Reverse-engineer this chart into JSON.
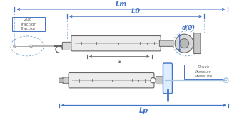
{
  "bg_color": "#ffffff",
  "blue": "#4472c4",
  "light_blue": "#a8c4e0",
  "gray": "#999999",
  "dark_gray": "#666666",
  "mid_gray": "#aaaaaa",
  "light_gray": "#cccccc",
  "dashed_blue": "#7aaad0",
  "lm_label": "Lm",
  "l0_label": "L0",
  "s_label": "s",
  "d_label": "d(Ø)",
  "lp_label": "Lp",
  "zug_label": "Zug\nTraction\nTraction",
  "druck_label": "Druck\nPression\nPressure"
}
